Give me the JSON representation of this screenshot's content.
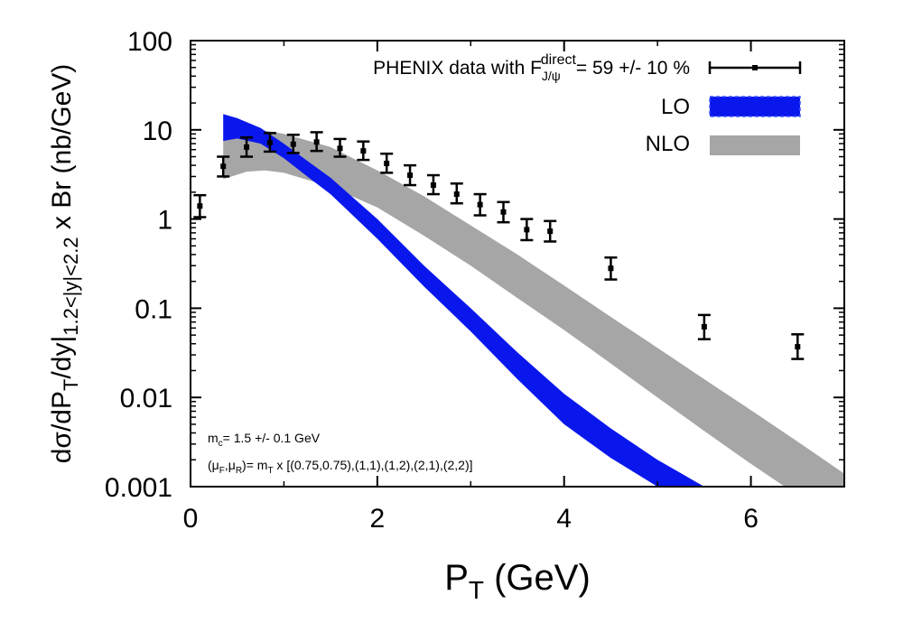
{
  "chart_data": {
    "type": "scatter",
    "xlabel": "P",
    "xlabel_subscript": "T",
    "xlabel_unit": "(GeV)",
    "ylabel_parts": [
      "dσ/dP",
      "T",
      "/dy|",
      "1.2<|y|<2.2",
      " x Br (nb/GeV)"
    ],
    "xlim": [
      0,
      7
    ],
    "ylim": [
      0.001,
      100
    ],
    "yscale": "log",
    "x_ticks": [
      0,
      2,
      4,
      6
    ],
    "x_tick_labels": [
      "0",
      "2",
      "4",
      "6"
    ],
    "y_ticks": [
      0.001,
      0.01,
      0.1,
      1,
      10,
      100
    ],
    "y_tick_labels": [
      "0.001",
      "0.01",
      "0.1",
      "1",
      "10",
      "100"
    ],
    "legend": {
      "position": "top-right",
      "data_label_main": "PHENIX data with F",
      "data_label_sup": "direct",
      "data_label_sub": "J/ψ",
      "data_label_tail": "= 59 +/- 10 %",
      "lo_label": "LO",
      "nlo_label": "NLO"
    },
    "colors": {
      "lo": "#0a17ec",
      "nlo": "#a6a6a6",
      "data": "#000000"
    },
    "series": [
      {
        "name": "PHENIX data",
        "kind": "points",
        "points": [
          {
            "x": 0.1,
            "y": 1.4,
            "ylo": 1.05,
            "yhi": 1.85
          },
          {
            "x": 0.35,
            "y": 3.9,
            "ylo": 3.0,
            "yhi": 5.0
          },
          {
            "x": 0.6,
            "y": 6.4,
            "ylo": 5.0,
            "yhi": 8.2
          },
          {
            "x": 0.85,
            "y": 7.2,
            "ylo": 5.7,
            "yhi": 9.2
          },
          {
            "x": 1.1,
            "y": 6.9,
            "ylo": 5.5,
            "yhi": 8.8
          },
          {
            "x": 1.35,
            "y": 7.3,
            "ylo": 5.8,
            "yhi": 9.4
          },
          {
            "x": 1.6,
            "y": 6.2,
            "ylo": 5.0,
            "yhi": 7.9
          },
          {
            "x": 1.85,
            "y": 5.8,
            "ylo": 4.6,
            "yhi": 7.4
          },
          {
            "x": 2.1,
            "y": 4.2,
            "ylo": 3.3,
            "yhi": 5.4
          },
          {
            "x": 2.35,
            "y": 3.1,
            "ylo": 2.4,
            "yhi": 4.0
          },
          {
            "x": 2.6,
            "y": 2.4,
            "ylo": 1.9,
            "yhi": 3.1
          },
          {
            "x": 2.85,
            "y": 1.9,
            "ylo": 1.5,
            "yhi": 2.5
          },
          {
            "x": 3.1,
            "y": 1.45,
            "ylo": 1.1,
            "yhi": 1.9
          },
          {
            "x": 3.35,
            "y": 1.2,
            "ylo": 0.92,
            "yhi": 1.55
          },
          {
            "x": 3.6,
            "y": 0.76,
            "ylo": 0.58,
            "yhi": 1.0
          },
          {
            "x": 3.85,
            "y": 0.73,
            "ylo": 0.56,
            "yhi": 0.95
          },
          {
            "x": 4.5,
            "y": 0.28,
            "ylo": 0.21,
            "yhi": 0.37
          },
          {
            "x": 5.5,
            "y": 0.062,
            "ylo": 0.045,
            "yhi": 0.084
          },
          {
            "x": 6.5,
            "y": 0.037,
            "ylo": 0.027,
            "yhi": 0.051
          }
        ]
      },
      {
        "name": "LO",
        "kind": "band",
        "x": [
          0.35,
          0.5,
          0.75,
          1.0,
          1.25,
          1.5,
          2.0,
          2.5,
          3.0,
          3.5,
          4.0,
          4.5,
          5.0,
          5.5
        ],
        "upper": [
          15.0,
          13.5,
          10.5,
          7.0,
          4.5,
          2.9,
          1.0,
          0.3,
          0.1,
          0.032,
          0.011,
          0.0045,
          0.002,
          0.001
        ],
        "lower": [
          7.5,
          8.0,
          7.0,
          4.8,
          3.0,
          1.9,
          0.6,
          0.175,
          0.055,
          0.016,
          0.005,
          0.0021,
          0.001,
          0.00045
        ]
      },
      {
        "name": "NLO",
        "kind": "band",
        "x": [
          0.35,
          0.6,
          0.8,
          1.0,
          1.5,
          2.0,
          2.5,
          3.0,
          3.5,
          4.0,
          4.5,
          5.0,
          5.5,
          6.0,
          6.5,
          7.0
        ],
        "upper": [
          7.9,
          10.0,
          9.8,
          9.0,
          6.4,
          3.5,
          1.8,
          0.85,
          0.4,
          0.18,
          0.08,
          0.036,
          0.016,
          0.0072,
          0.0032,
          0.0014
        ],
        "lower": [
          2.8,
          3.4,
          3.5,
          3.3,
          2.3,
          1.35,
          0.65,
          0.3,
          0.13,
          0.057,
          0.024,
          0.01,
          0.0042,
          0.0018,
          0.0008,
          0.00035
        ]
      }
    ],
    "annotations": {
      "mass_main": "m",
      "mass_sub": "c",
      "mass_tail": "= 1.5 +/- 0.1 GeV",
      "scale_open": "(μ",
      "scale_sub1": "F",
      "scale_mid": ",μ",
      "scale_sub2": "R",
      "scale_close": ")= m",
      "scale_sub3": "T",
      "scale_tail": " x [(0.75,0.75),(1,1),(1,2),(2,1),(2,2)]"
    }
  }
}
